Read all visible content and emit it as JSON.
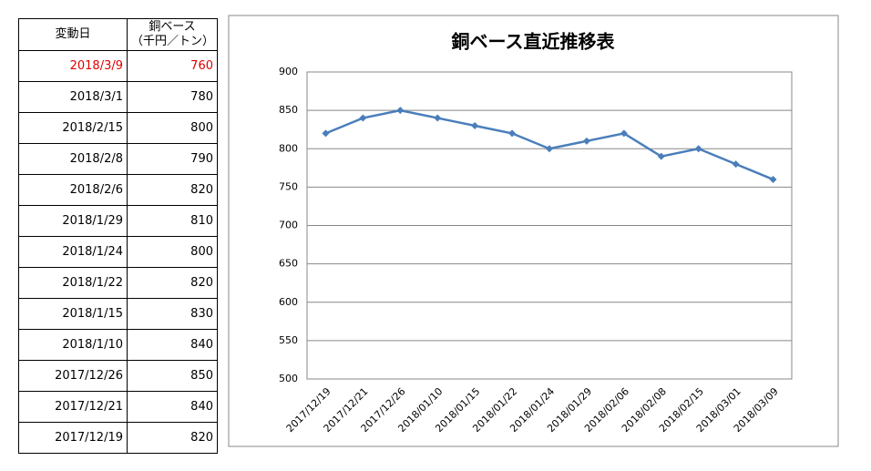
{
  "table": {
    "header": [
      "変動日",
      [
        "銅ベース",
        "（千円／トン）"
      ]
    ],
    "rows": [
      [
        "2018/3/9",
        760
      ],
      [
        "2018/3/1",
        780
      ],
      [
        "2018/2/15",
        800
      ],
      [
        "2018/2/8",
        790
      ],
      [
        "2018/2/6",
        820
      ],
      [
        "2018/1/29",
        810
      ],
      [
        "2018/1/24",
        800
      ],
      [
        "2018/1/22",
        820
      ],
      [
        "2018/1/15",
        830
      ],
      [
        "2018/1/10",
        840
      ],
      [
        "2017/12/26",
        850
      ],
      [
        "2017/12/21",
        840
      ],
      [
        "2017/12/19",
        820
      ]
    ]
  },
  "chart_data": {
    "type": "line",
    "title": "銅ベース直近推移表",
    "categories": [
      "2017/12/19",
      "2017/12/21",
      "2017/12/26",
      "2018/01/10",
      "2018/01/15",
      "2018/01/22",
      "2018/01/24",
      "2018/01/29",
      "2018/02/06",
      "2018/02/08",
      "2018/02/15",
      "2018/03/01",
      "2018/03/09"
    ],
    "values": [
      820,
      840,
      850,
      840,
      830,
      820,
      800,
      810,
      820,
      790,
      800,
      780,
      760
    ],
    "color": "#4a7ebb",
    "ylim": [
      500,
      900
    ],
    "yticks": [
      500,
      550,
      600,
      650,
      700,
      750,
      800,
      850,
      900
    ],
    "grid": true
  }
}
